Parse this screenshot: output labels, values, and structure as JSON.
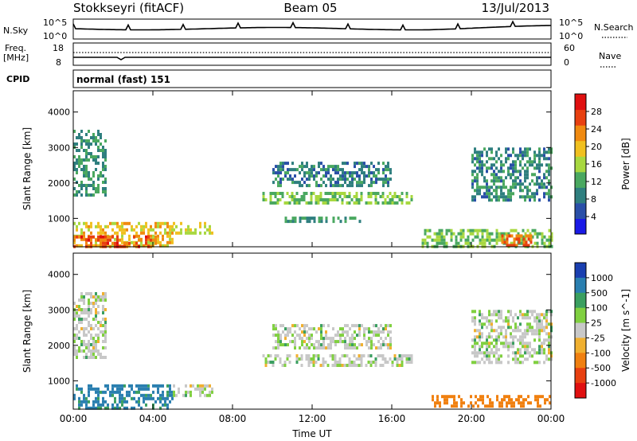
{
  "header": {
    "station": "Stokkseyri (fitACF)",
    "beam": "Beam 05",
    "date": "13/Jul/2013"
  },
  "summary": {
    "nsky_label": "N.Sky",
    "nsky_ticks": [
      "10^5",
      "10^0"
    ],
    "nsearch_label": "N.Search",
    "freq_label": "Freq.",
    "freq_unit": "[MHz]",
    "freq_ticks": [
      "18",
      "8"
    ],
    "nave_label": "Nave",
    "nave_ticks": [
      "60",
      "0"
    ],
    "cpid_label": "CPID",
    "cpid_value": "normal (fast) 151"
  },
  "colors": {
    "power_scale": [
      "#1a1ae6",
      "#2a4fa8",
      "#2f7f7f",
      "#4aa860",
      "#a8d840",
      "#f0c020",
      "#f08a10",
      "#e84010",
      "#e01010"
    ],
    "velocity_scale": [
      "#1a3fb0",
      "#2a7fb0",
      "#3a9f60",
      "#80d040",
      "#c8c8c8",
      "#f0b030",
      "#f08010",
      "#e84010",
      "#e01010"
    ]
  },
  "chart_data": [
    {
      "type": "heatmap",
      "title": "Power",
      "xlabel": "Time UT",
      "ylabel": "Slant Range [km]",
      "x_ticks": [
        "00:00",
        "04:00",
        "08:00",
        "12:00",
        "16:00",
        "20:00",
        "00:00"
      ],
      "y_ticks": [
        1000,
        2000,
        3000,
        4000
      ],
      "ylim": [
        200,
        4600
      ],
      "colorbar": {
        "label": "Power [dB]",
        "ticks": [
          4,
          8,
          12,
          16,
          20,
          24,
          28
        ],
        "range": [
          0,
          32
        ]
      },
      "regions": [
        {
          "t": [
            0.0,
            1.6
          ],
          "r": [
            1700,
            3500
          ],
          "level": 10
        },
        {
          "t": [
            0.0,
            5.0
          ],
          "r": [
            250,
            900
          ],
          "level": 20
        },
        {
          "t": [
            0.0,
            4.2
          ],
          "r": [
            250,
            520
          ],
          "level": 27
        },
        {
          "t": [
            5.0,
            7.0
          ],
          "r": [
            600,
            900
          ],
          "level": 18
        },
        {
          "t": [
            9.5,
            17.0
          ],
          "r": [
            1450,
            1750
          ],
          "level": 14
        },
        {
          "t": [
            10.0,
            16.0
          ],
          "r": [
            1900,
            2600
          ],
          "level": 8
        },
        {
          "t": [
            10.5,
            14.5
          ],
          "r": [
            880,
            1050
          ],
          "level": 10
        },
        {
          "t": [
            17.5,
            24.0
          ],
          "r": [
            250,
            700
          ],
          "level": 14
        },
        {
          "t": [
            20.0,
            24.0
          ],
          "r": [
            1500,
            3000
          ],
          "level": 9
        },
        {
          "t": [
            21.5,
            23.0
          ],
          "r": [
            250,
            550
          ],
          "level": 26
        }
      ]
    },
    {
      "type": "heatmap",
      "title": "Velocity",
      "xlabel": "Time UT",
      "ylabel": "Slant Range [km]",
      "x_ticks": [
        "00:00",
        "04:00",
        "08:00",
        "12:00",
        "16:00",
        "20:00",
        "00:00"
      ],
      "y_ticks": [
        1000,
        2000,
        3000,
        4000
      ],
      "ylim": [
        200,
        4600
      ],
      "colorbar": {
        "label": "Velocity [m s^-1]",
        "ticks": [
          "1000",
          "500",
          "100",
          "25",
          "-25",
          "-100",
          "-500",
          "-1000"
        ]
      },
      "regions": [
        {
          "t": [
            0.0,
            1.6
          ],
          "r": [
            1700,
            3500
          ],
          "velocity": 0
        },
        {
          "t": [
            0.0,
            5.0
          ],
          "r": [
            250,
            900
          ],
          "velocity": 120
        },
        {
          "t": [
            5.0,
            7.0
          ],
          "r": [
            600,
            900
          ],
          "velocity": 0
        },
        {
          "t": [
            9.5,
            17.0
          ],
          "r": [
            1450,
            1750
          ],
          "velocity": 0
        },
        {
          "t": [
            10.0,
            16.0
          ],
          "r": [
            1900,
            2600
          ],
          "velocity": 0
        },
        {
          "t": [
            18.0,
            24.0
          ],
          "r": [
            250,
            600
          ],
          "velocity": -200
        },
        {
          "t": [
            20.0,
            24.0
          ],
          "r": [
            1500,
            3000
          ],
          "velocity": 0
        }
      ]
    }
  ]
}
